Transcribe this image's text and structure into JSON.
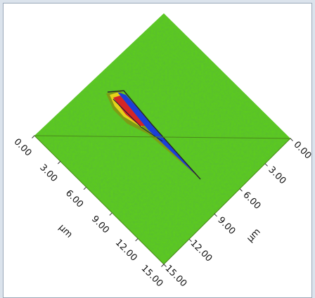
{
  "chart_data": {
    "type": "surface",
    "xlabel": "µm",
    "ylabel": "µm",
    "xlim": [
      0,
      15
    ],
    "ylim": [
      0,
      15
    ],
    "xticks": [
      {
        "value": 0,
        "label": "0.00"
      },
      {
        "value": 3,
        "label": "3.00"
      },
      {
        "value": 6,
        "label": "6.00"
      },
      {
        "value": 9,
        "label": "9.00"
      },
      {
        "value": 12,
        "label": "12.00"
      },
      {
        "value": 15,
        "label": "15.00"
      }
    ],
    "yticks": [
      {
        "value": 0,
        "label": "0.00"
      },
      {
        "value": 3,
        "label": "3.00"
      },
      {
        "value": 6,
        "label": "6.00"
      },
      {
        "value": 9,
        "label": "9.00"
      },
      {
        "value": 12,
        "label": "12.00"
      },
      {
        "value": 15,
        "label": "15.00"
      }
    ]
  }
}
